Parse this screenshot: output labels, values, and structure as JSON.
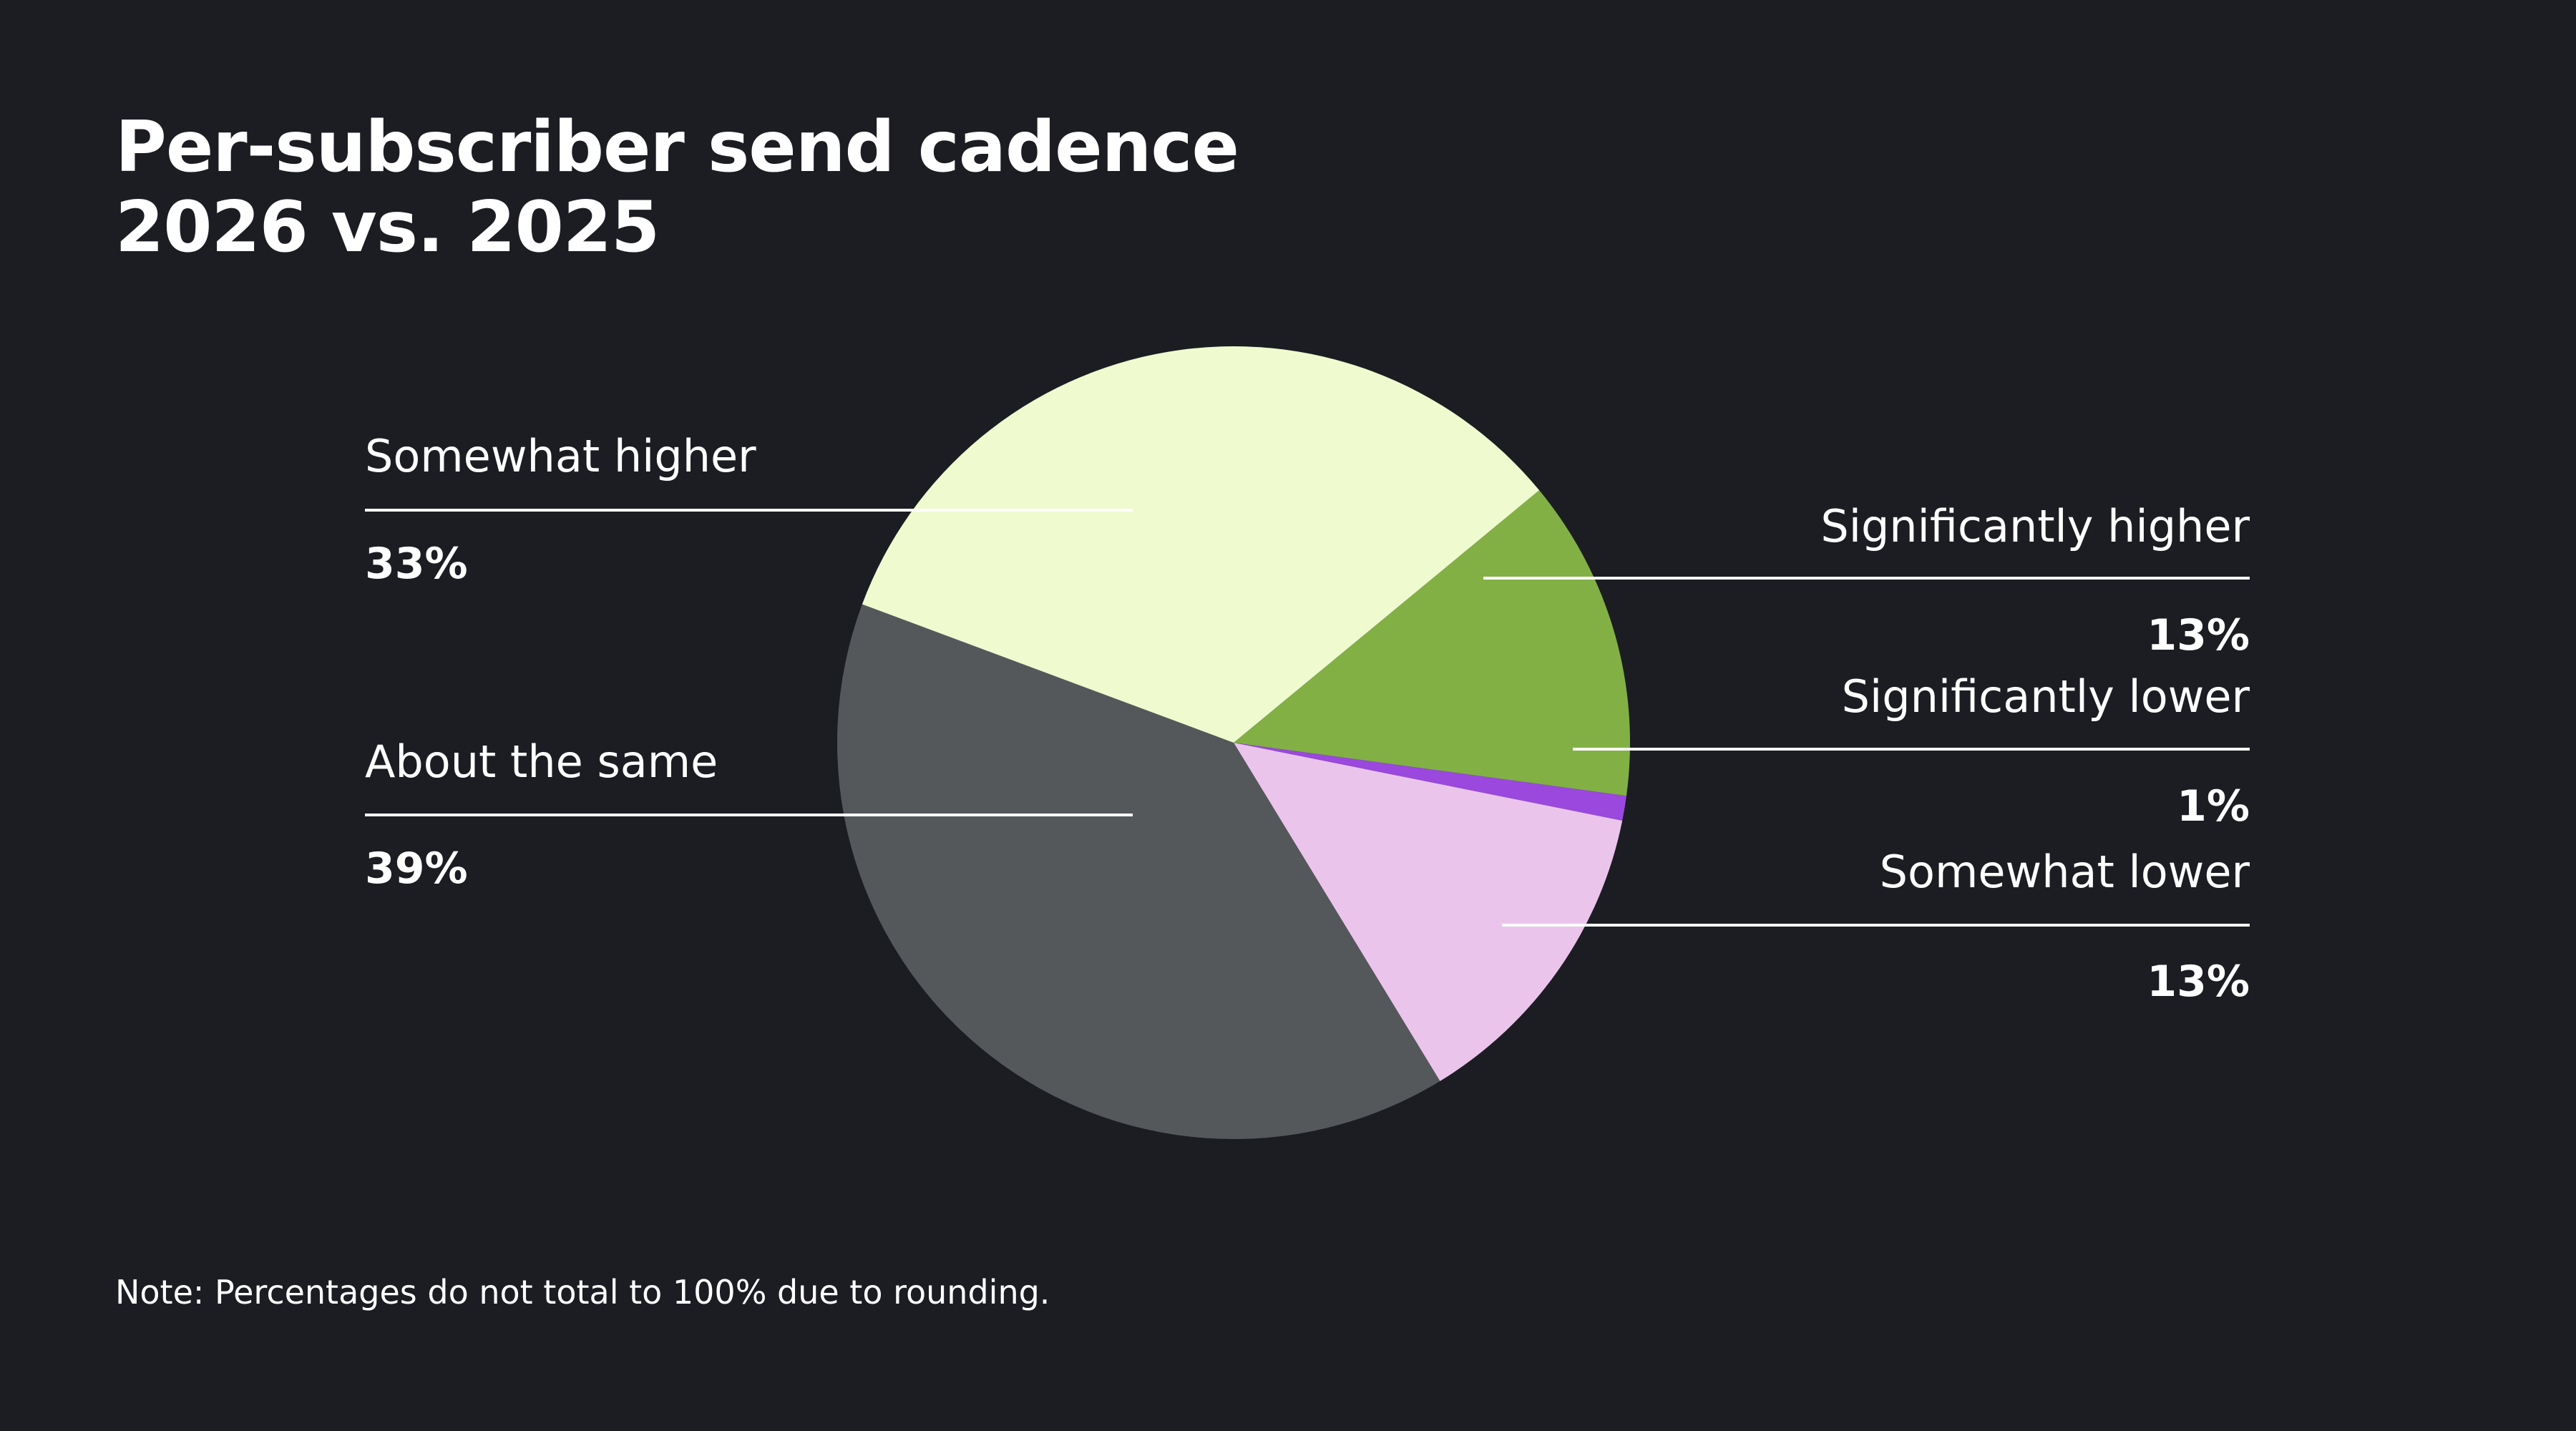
{
  "title_line1": "Per-subscriber send cadence",
  "title_line2": "2026 vs. 2025",
  "note": "Note: Percentages do not total to 100% due to rounding.",
  "chart_data": {
    "type": "pie",
    "title": "Per-subscriber send cadence 2026 vs. 2025",
    "slices": [
      {
        "label": "Significantly higher",
        "value": 13,
        "value_label": "13%",
        "color": "#82b045",
        "side": "right"
      },
      {
        "label": "Significantly lower",
        "value": 1,
        "value_label": "1%",
        "color": "#9a48dd",
        "side": "right"
      },
      {
        "label": "Somewhat lower",
        "value": 13,
        "value_label": "13%",
        "color": "#ebc4ec",
        "side": "right"
      },
      {
        "label": "About the same",
        "value": 39,
        "value_label": "39%",
        "color": "#55585b",
        "side": "left"
      },
      {
        "label": "Somewhat higher",
        "value": 33,
        "value_label": "33%",
        "color": "#effacf",
        "side": "left"
      }
    ],
    "legend": "none",
    "grid": false
  }
}
